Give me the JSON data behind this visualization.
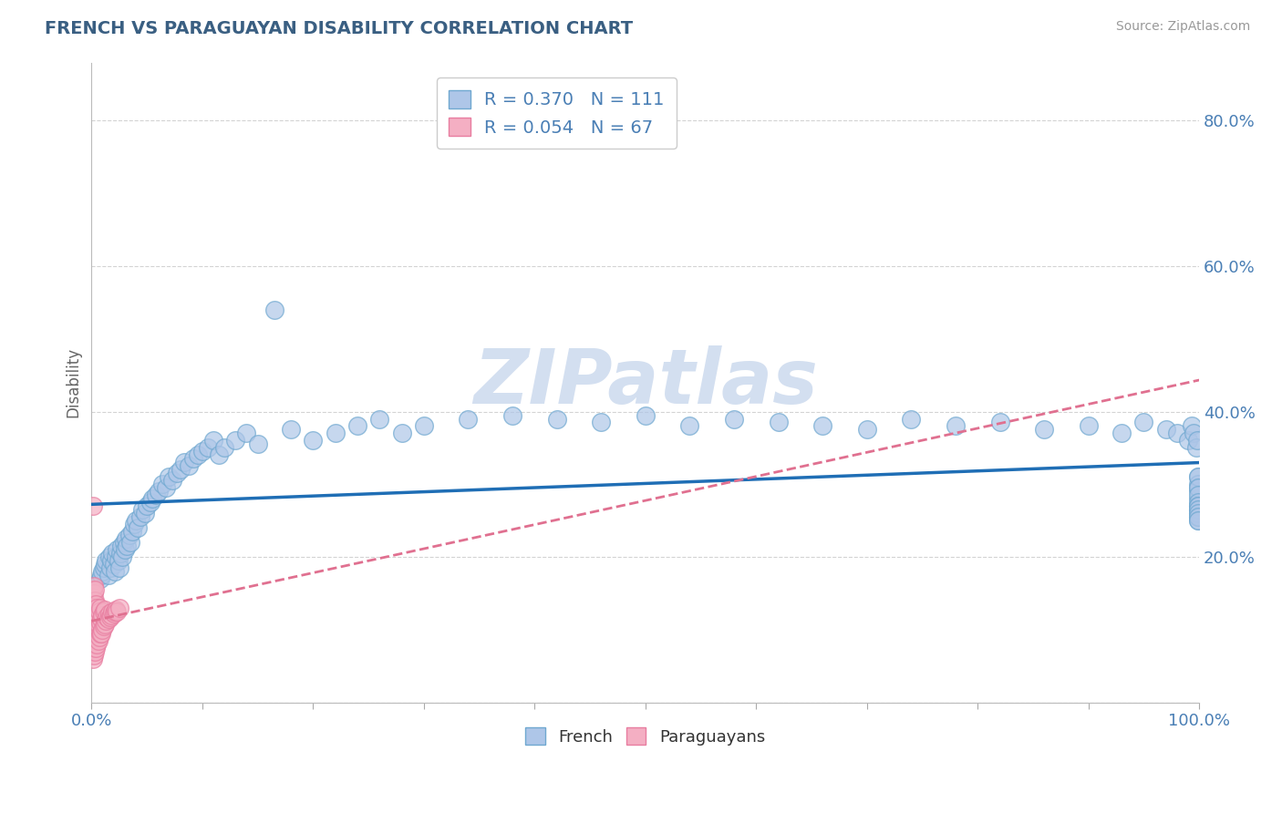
{
  "title": "FRENCH VS PARAGUAYAN DISABILITY CORRELATION CHART",
  "source": "Source: ZipAtlas.com",
  "ylabel": "Disability",
  "xlim": [
    0,
    1.0
  ],
  "ylim": [
    0,
    0.88
  ],
  "yticks": [
    0.0,
    0.2,
    0.4,
    0.6,
    0.8
  ],
  "ytick_labels": [
    "",
    "20.0%",
    "40.0%",
    "60.0%",
    "80.0%"
  ],
  "xticks": [
    0.0,
    0.1,
    0.2,
    0.3,
    0.4,
    0.5,
    0.6,
    0.7,
    0.8,
    0.9,
    1.0
  ],
  "xtick_labels": [
    "0.0%",
    "",
    "",
    "",
    "",
    "",
    "",
    "",
    "",
    "",
    "100.0%"
  ],
  "french_R": 0.37,
  "french_N": 111,
  "paraguayan_R": 0.054,
  "paraguayan_N": 67,
  "blue_color": "#aec6e8",
  "pink_color": "#f4afc3",
  "blue_edge_color": "#6fa8d0",
  "pink_edge_color": "#e87da0",
  "blue_line_color": "#1f6eb5",
  "pink_line_color": "#e07090",
  "title_color": "#3a5f82",
  "axis_label_color": "#666666",
  "tick_label_color": "#4a7fb5",
  "grid_color": "#c8c8c8",
  "watermark_color": "#d3dff0",
  "background_color": "#ffffff",
  "french_x": [
    0.008,
    0.009,
    0.01,
    0.011,
    0.012,
    0.013,
    0.015,
    0.016,
    0.017,
    0.018,
    0.019,
    0.02,
    0.021,
    0.022,
    0.023,
    0.024,
    0.025,
    0.026,
    0.027,
    0.028,
    0.029,
    0.03,
    0.031,
    0.032,
    0.034,
    0.035,
    0.037,
    0.038,
    0.04,
    0.042,
    0.044,
    0.046,
    0.048,
    0.05,
    0.053,
    0.055,
    0.058,
    0.061,
    0.064,
    0.067,
    0.07,
    0.073,
    0.077,
    0.08,
    0.084,
    0.088,
    0.092,
    0.096,
    0.1,
    0.105,
    0.11,
    0.115,
    0.12,
    0.13,
    0.14,
    0.15,
    0.165,
    0.18,
    0.2,
    0.22,
    0.24,
    0.26,
    0.28,
    0.3,
    0.34,
    0.38,
    0.42,
    0.46,
    0.5,
    0.54,
    0.58,
    0.62,
    0.66,
    0.7,
    0.74,
    0.78,
    0.82,
    0.86,
    0.9,
    0.93,
    0.95,
    0.97,
    0.98,
    0.99,
    0.993,
    0.995,
    0.997,
    0.998,
    0.999,
    0.999,
    0.999,
    0.999,
    0.999,
    0.999,
    0.999,
    0.999,
    0.999,
    0.999,
    0.999,
    0.999,
    0.999,
    0.999,
    0.999,
    0.999,
    0.999,
    0.999,
    0.999,
    0.999,
    0.999,
    0.999,
    0.999
  ],
  "french_y": [
    0.17,
    0.175,
    0.18,
    0.185,
    0.19,
    0.195,
    0.175,
    0.2,
    0.185,
    0.195,
    0.205,
    0.19,
    0.18,
    0.2,
    0.21,
    0.195,
    0.185,
    0.205,
    0.215,
    0.2,
    0.22,
    0.21,
    0.225,
    0.215,
    0.23,
    0.22,
    0.235,
    0.245,
    0.25,
    0.24,
    0.255,
    0.265,
    0.26,
    0.27,
    0.275,
    0.28,
    0.285,
    0.29,
    0.3,
    0.295,
    0.31,
    0.305,
    0.315,
    0.32,
    0.33,
    0.325,
    0.335,
    0.34,
    0.345,
    0.35,
    0.36,
    0.34,
    0.35,
    0.36,
    0.37,
    0.355,
    0.54,
    0.375,
    0.36,
    0.37,
    0.38,
    0.39,
    0.37,
    0.38,
    0.39,
    0.395,
    0.39,
    0.385,
    0.395,
    0.38,
    0.39,
    0.385,
    0.38,
    0.375,
    0.39,
    0.38,
    0.385,
    0.375,
    0.38,
    0.37,
    0.385,
    0.375,
    0.37,
    0.36,
    0.38,
    0.37,
    0.35,
    0.36,
    0.31,
    0.28,
    0.29,
    0.3,
    0.295,
    0.265,
    0.27,
    0.265,
    0.255,
    0.31,
    0.295,
    0.285,
    0.275,
    0.27,
    0.265,
    0.26,
    0.27,
    0.265,
    0.255,
    0.26,
    0.25,
    0.255,
    0.25
  ],
  "paraguayan_x": [
    0.001,
    0.001,
    0.001,
    0.001,
    0.001,
    0.001,
    0.001,
    0.001,
    0.001,
    0.001,
    0.001,
    0.002,
    0.002,
    0.002,
    0.002,
    0.002,
    0.002,
    0.002,
    0.002,
    0.002,
    0.002,
    0.003,
    0.003,
    0.003,
    0.003,
    0.003,
    0.003,
    0.003,
    0.003,
    0.004,
    0.004,
    0.004,
    0.004,
    0.004,
    0.005,
    0.005,
    0.005,
    0.005,
    0.006,
    0.006,
    0.006,
    0.007,
    0.007,
    0.007,
    0.008,
    0.008,
    0.008,
    0.009,
    0.009,
    0.01,
    0.01,
    0.011,
    0.011,
    0.012,
    0.012,
    0.013,
    0.014,
    0.015,
    0.016,
    0.017,
    0.018,
    0.019,
    0.02,
    0.021,
    0.022,
    0.023,
    0.025
  ],
  "paraguayan_y": [
    0.06,
    0.075,
    0.085,
    0.095,
    0.105,
    0.115,
    0.125,
    0.135,
    0.145,
    0.155,
    0.27,
    0.065,
    0.08,
    0.09,
    0.1,
    0.11,
    0.12,
    0.13,
    0.14,
    0.15,
    0.16,
    0.07,
    0.085,
    0.095,
    0.105,
    0.115,
    0.125,
    0.14,
    0.155,
    0.075,
    0.09,
    0.105,
    0.12,
    0.135,
    0.08,
    0.095,
    0.11,
    0.13,
    0.085,
    0.1,
    0.12,
    0.09,
    0.105,
    0.125,
    0.095,
    0.11,
    0.13,
    0.095,
    0.115,
    0.1,
    0.12,
    0.105,
    0.125,
    0.108,
    0.128,
    0.112,
    0.118,
    0.115,
    0.122,
    0.118,
    0.12,
    0.125,
    0.122,
    0.125,
    0.128,
    0.125,
    0.13
  ]
}
